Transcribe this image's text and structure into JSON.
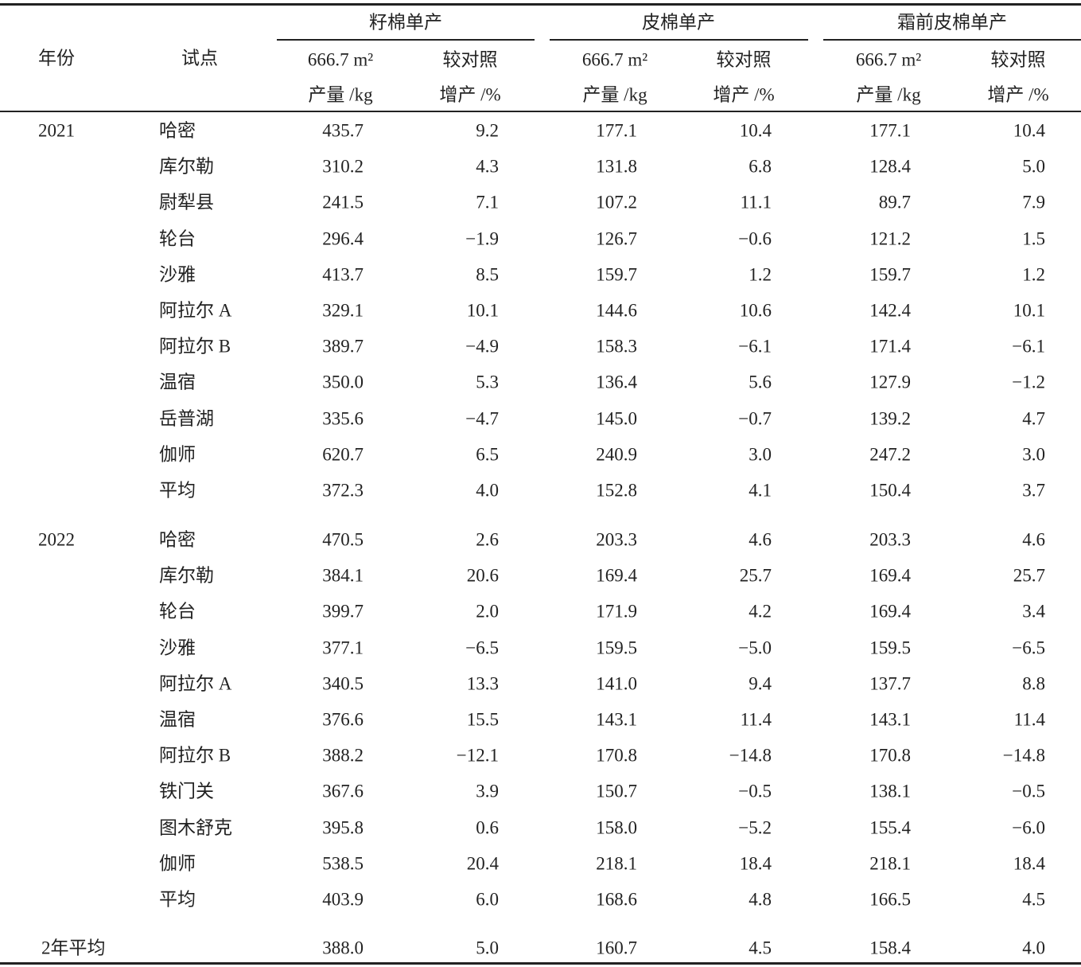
{
  "header": {
    "col_year": "年份",
    "col_site": "试点",
    "groups": [
      {
        "title": "籽棉单产",
        "sub": [
          [
            "666.7 m²",
            "产量 /kg"
          ],
          [
            "较对照",
            "增产 /%"
          ]
        ]
      },
      {
        "title": "皮棉单产",
        "sub": [
          [
            "666.7 m²",
            "产量 /kg"
          ],
          [
            "较对照",
            "增产 /%"
          ]
        ]
      },
      {
        "title": "霜前皮棉单产",
        "sub": [
          [
            "666.7 m²",
            "产量 /kg"
          ],
          [
            "较对照",
            "增产 /%"
          ]
        ]
      }
    ]
  },
  "table": {
    "sections": [
      {
        "rows": [
          {
            "year": "2021",
            "site": "哈密",
            "values": [
              "435.7",
              "9.2",
              "177.1",
              "10.4",
              "177.1",
              "10.4"
            ]
          },
          {
            "site": "库尔勒",
            "values": [
              "310.2",
              "4.3",
              "131.8",
              "6.8",
              "128.4",
              "5.0"
            ]
          },
          {
            "site": "尉犁县",
            "values": [
              "241.5",
              "7.1",
              "107.2",
              "11.1",
              "89.7",
              "7.9"
            ]
          },
          {
            "site": "轮台",
            "values": [
              "296.4",
              "−1.9",
              "126.7",
              "−0.6",
              "121.2",
              "1.5"
            ]
          },
          {
            "site": "沙雅",
            "values": [
              "413.7",
              "8.5",
              "159.7",
              "1.2",
              "159.7",
              "1.2"
            ]
          },
          {
            "site": "阿拉尔 A",
            "values": [
              "329.1",
              "10.1",
              "144.6",
              "10.6",
              "142.4",
              "10.1"
            ]
          },
          {
            "site": "阿拉尔 B",
            "values": [
              "389.7",
              "−4.9",
              "158.3",
              "−6.1",
              "171.4",
              "−6.1"
            ]
          },
          {
            "site": "温宿",
            "values": [
              "350.0",
              "5.3",
              "136.4",
              "5.6",
              "127.9",
              "−1.2"
            ]
          },
          {
            "site": "岳普湖",
            "values": [
              "335.6",
              "−4.7",
              "145.0",
              "−0.7",
              "139.2",
              "4.7"
            ]
          },
          {
            "site": "伽师",
            "values": [
              "620.7",
              "6.5",
              "240.9",
              "3.0",
              "247.2",
              "3.0"
            ]
          },
          {
            "site": "平均",
            "values": [
              "372.3",
              "4.0",
              "152.8",
              "4.1",
              "150.4",
              "3.7"
            ]
          }
        ]
      },
      {
        "rows": [
          {
            "year": "2022",
            "site": "哈密",
            "values": [
              "470.5",
              "2.6",
              "203.3",
              "4.6",
              "203.3",
              "4.6"
            ]
          },
          {
            "site": "库尔勒",
            "values": [
              "384.1",
              "20.6",
              "169.4",
              "25.7",
              "169.4",
              "25.7"
            ]
          },
          {
            "site": "轮台",
            "values": [
              "399.7",
              "2.0",
              "171.9",
              "4.2",
              "169.4",
              "3.4"
            ]
          },
          {
            "site": "沙雅",
            "values": [
              "377.1",
              "−6.5",
              "159.5",
              "−5.0",
              "159.5",
              "−6.5"
            ]
          },
          {
            "site": "阿拉尔 A",
            "values": [
              "340.5",
              "13.3",
              "141.0",
              "9.4",
              "137.7",
              "8.8"
            ]
          },
          {
            "site": "温宿",
            "values": [
              "376.6",
              "15.5",
              "143.1",
              "11.4",
              "143.1",
              "11.4"
            ]
          },
          {
            "site": "阿拉尔 B",
            "values": [
              "388.2",
              "−12.1",
              "170.8",
              "−14.8",
              "170.8",
              "−14.8"
            ]
          },
          {
            "site": "铁门关",
            "values": [
              "367.6",
              "3.9",
              "150.7",
              "−0.5",
              "138.1",
              "−0.5"
            ]
          },
          {
            "site": "图木舒克",
            "values": [
              "395.8",
              "0.6",
              "158.0",
              "−5.2",
              "155.4",
              "−6.0"
            ]
          },
          {
            "site": "伽师",
            "values": [
              "538.5",
              "20.4",
              "218.1",
              "18.4",
              "218.1",
              "18.4"
            ]
          },
          {
            "site": "平均",
            "values": [
              "403.9",
              "6.0",
              "168.6",
              "4.8",
              "166.5",
              "4.5"
            ]
          }
        ]
      },
      {
        "rows": [
          {
            "year": "2年平均",
            "values": [
              "388.0",
              "5.0",
              "160.7",
              "4.5",
              "158.4",
              "4.0"
            ]
          }
        ]
      }
    ]
  }
}
